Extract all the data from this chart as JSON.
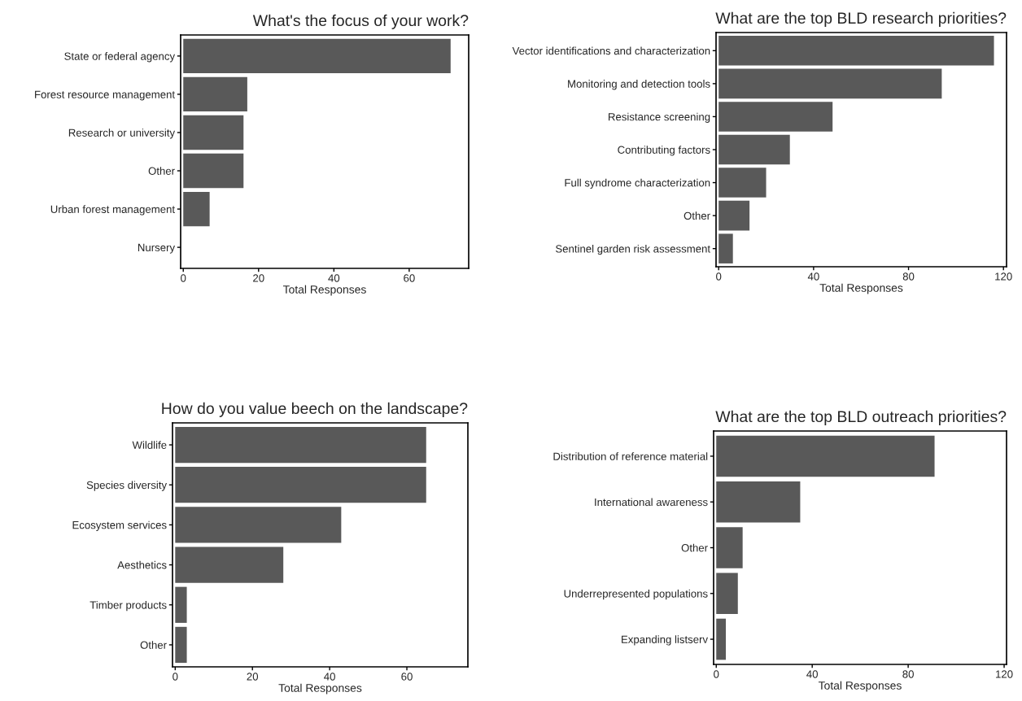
{
  "chart_data": [
    {
      "type": "bar",
      "orientation": "horizontal",
      "title": "What's the focus of your work?",
      "xlabel": "Total Responses",
      "categories": [
        "State or federal agency",
        "Forest resource management",
        "Research or university",
        "Other",
        "Urban forest management",
        "Nursery"
      ],
      "values": [
        71,
        17,
        16,
        16,
        7,
        0
      ],
      "color": "#595959",
      "xlim": [
        -0.7,
        75.8
      ],
      "xticks": [
        0,
        20,
        40,
        60
      ],
      "grid": false,
      "legend": false
    },
    {
      "type": "bar",
      "orientation": "horizontal",
      "title": "What are the top BLD research priorities?",
      "xlabel": "Total Responses",
      "categories": [
        "Vector identifications and characterization",
        "Monitoring and detection tools",
        "Resistance screening",
        "Contributing factors",
        "Full syndrome characterization",
        "Other",
        "Sentinel garden risk assessment"
      ],
      "values": [
        116,
        94,
        48,
        30,
        20,
        13,
        6
      ],
      "color": "#595959",
      "xlim": [
        -1.1,
        121.3
      ],
      "xticks": [
        0,
        40,
        80,
        120
      ],
      "grid": false,
      "legend": false
    },
    {
      "type": "bar",
      "orientation": "horizontal",
      "title": "How do you value beech on the landscape?",
      "xlabel": "Total Responses",
      "categories": [
        "Wildlife",
        "Species diversity",
        "Ecosystem services",
        "Aesthetics",
        "Timber products",
        "Other"
      ],
      "values": [
        65,
        65,
        43,
        28,
        3,
        3
      ],
      "color": "#595959",
      "xlim": [
        -0.7,
        75.8
      ],
      "xticks": [
        0,
        20,
        40,
        60
      ],
      "grid": false,
      "legend": false
    },
    {
      "type": "bar",
      "orientation": "horizontal",
      "title": "What are the top BLD outreach priorities?",
      "xlabel": "Total Responses",
      "categories": [
        "Distribution of reference material",
        "International awareness",
        "Other",
        "Underrepresented populations",
        "Expanding listserv"
      ],
      "values": [
        91,
        35,
        11,
        9,
        4
      ],
      "color": "#595959",
      "xlim": [
        -1.1,
        121
      ],
      "xticks": [
        0,
        40,
        80,
        120
      ],
      "grid": false,
      "legend": false
    }
  ]
}
